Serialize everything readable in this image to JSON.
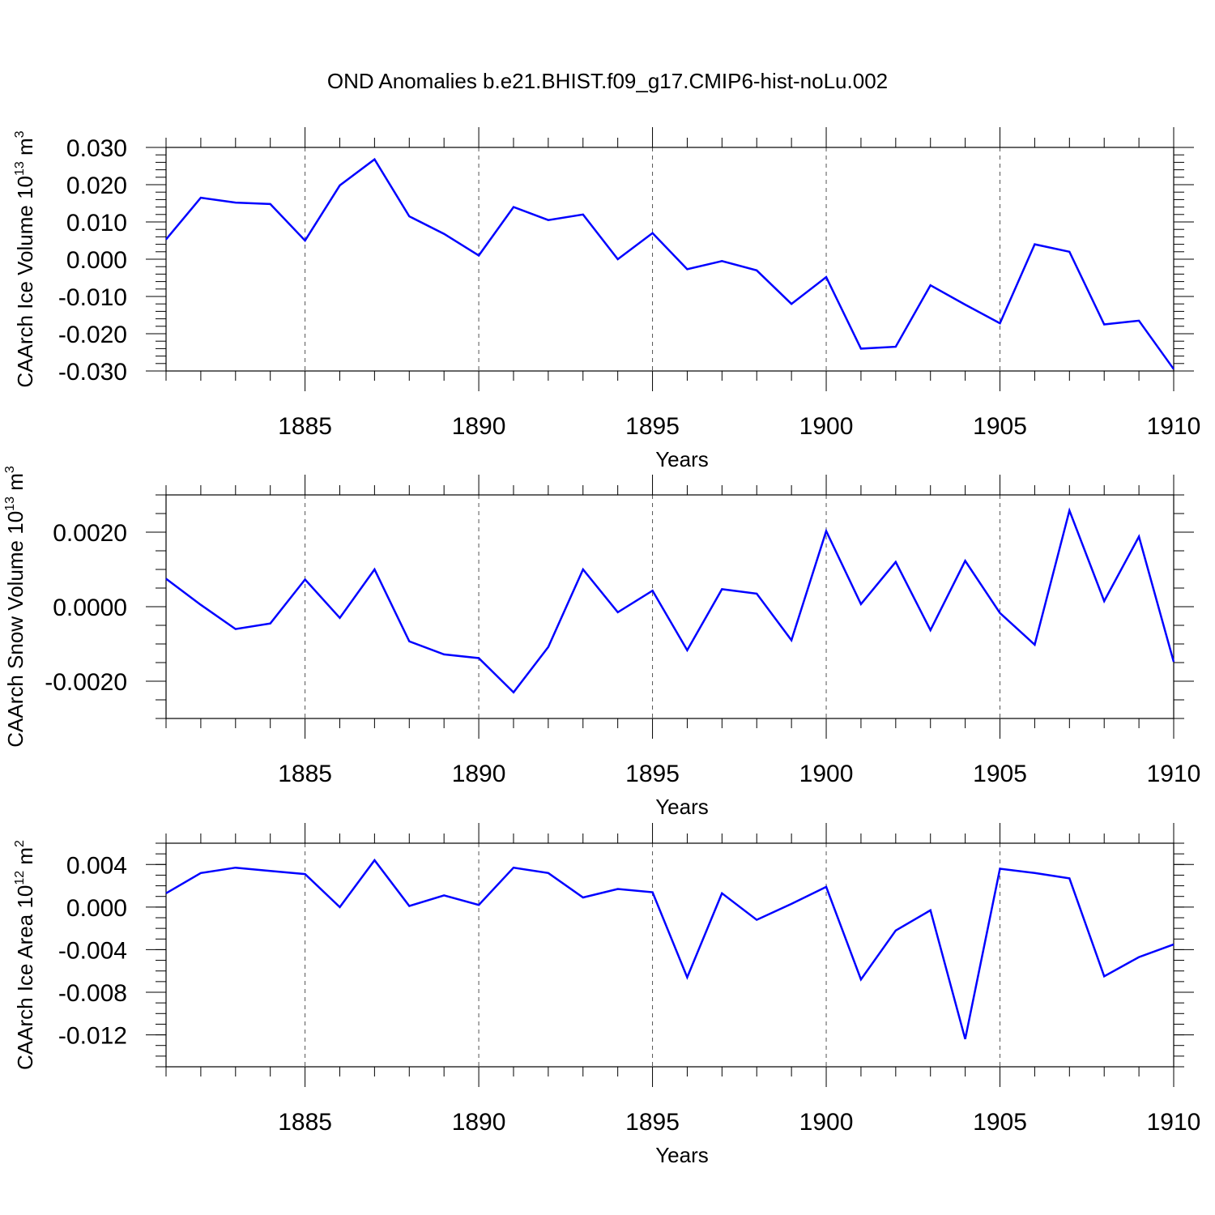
{
  "title": "OND Anomalies b.e21.BHIST.f09_g17.CMIP6-hist-noLu.002",
  "series_color": "#0000ff",
  "chart_data": [
    {
      "type": "line",
      "title": "OND Anomalies b.e21.BHIST.f09_g17.CMIP6-hist-noLu.002",
      "xlabel": "Years",
      "ylabel_text": "CAArch Ice Volume 10",
      "ylabel_exp": "13",
      "ylabel_unit": " m",
      "ylabel_unit_exp": "3",
      "xlim": [
        1881,
        1910
      ],
      "ylim": [
        -0.03,
        0.03
      ],
      "x_ticks": [
        1885,
        1890,
        1895,
        1900,
        1905,
        1910
      ],
      "y_ticks": [
        -0.03,
        -0.02,
        -0.01,
        0.0,
        0.01,
        0.02,
        0.03
      ],
      "y_tick_labels": [
        "-0.030",
        "-0.020",
        "-0.010",
        "0.000",
        "0.010",
        "0.020",
        "0.030"
      ],
      "y_minor_step": 0.002,
      "grid": "vertical dashed at major x ticks",
      "x": [
        1881,
        1882,
        1883,
        1884,
        1885,
        1886,
        1887,
        1888,
        1889,
        1890,
        1891,
        1892,
        1893,
        1894,
        1895,
        1896,
        1897,
        1898,
        1899,
        1900,
        1901,
        1902,
        1903,
        1904,
        1905,
        1906,
        1907,
        1908,
        1909,
        1910
      ],
      "values": [
        0.0053,
        0.0165,
        0.0152,
        0.0148,
        0.005,
        0.0198,
        0.0268,
        0.0115,
        0.0068,
        0.001,
        0.014,
        0.0105,
        0.012,
        0.0,
        0.007,
        -0.0027,
        -0.0005,
        -0.003,
        -0.012,
        -0.0048,
        -0.024,
        -0.0235,
        -0.007,
        -0.0122,
        -0.0172,
        0.004,
        0.002,
        -0.0175,
        -0.0165,
        -0.0295
      ]
    },
    {
      "type": "line",
      "xlabel": "Years",
      "ylabel_text": "CAArch Snow Volume 10",
      "ylabel_exp": "13",
      "ylabel_unit": " m",
      "ylabel_unit_exp": "3",
      "xlim": [
        1881,
        1910
      ],
      "ylim": [
        -0.003,
        0.003
      ],
      "x_ticks": [
        1885,
        1890,
        1895,
        1900,
        1905,
        1910
      ],
      "y_ticks": [
        -0.002,
        0.0,
        0.002
      ],
      "y_tick_labels": [
        "-0.0020",
        "0.0000",
        "0.0020"
      ],
      "y_minor_step": 0.0005,
      "grid": "vertical dashed at major x ticks",
      "x": [
        1881,
        1882,
        1883,
        1884,
        1885,
        1886,
        1887,
        1888,
        1889,
        1890,
        1891,
        1892,
        1893,
        1894,
        1895,
        1896,
        1897,
        1898,
        1899,
        1900,
        1901,
        1902,
        1903,
        1904,
        1905,
        1906,
        1907,
        1908,
        1909,
        1910
      ],
      "values": [
        0.00075,
        5e-05,
        -0.0006,
        -0.00045,
        0.00073,
        -0.0003,
        0.001,
        -0.00093,
        -0.00128,
        -0.00138,
        -0.0023,
        -0.00108,
        0.001,
        -0.00015,
        0.00043,
        -0.00117,
        0.00047,
        0.00035,
        -0.0009,
        0.00203,
        7e-05,
        0.0012,
        -0.00063,
        0.00123,
        -0.00017,
        -0.00102,
        0.00258,
        0.00015,
        0.00188,
        -0.00148
      ]
    },
    {
      "type": "line",
      "xlabel": "Years",
      "ylabel_text": "CAArch Ice Area 10",
      "ylabel_exp": "12",
      "ylabel_unit": " m",
      "ylabel_unit_exp": "2",
      "xlim": [
        1881,
        1910
      ],
      "ylim": [
        -0.015,
        0.006
      ],
      "x_ticks": [
        1885,
        1890,
        1895,
        1900,
        1905,
        1910
      ],
      "y_ticks": [
        -0.012,
        -0.008,
        -0.004,
        0.0,
        0.004
      ],
      "y_tick_labels": [
        "-0.012",
        "-0.008",
        "-0.004",
        "0.000",
        "0.004"
      ],
      "y_minor_step": 0.001,
      "grid": "vertical dashed at major x ticks",
      "x": [
        1881,
        1882,
        1883,
        1884,
        1885,
        1886,
        1887,
        1888,
        1889,
        1890,
        1891,
        1892,
        1893,
        1894,
        1895,
        1896,
        1897,
        1898,
        1899,
        1900,
        1901,
        1902,
        1903,
        1904,
        1905,
        1906,
        1907,
        1908,
        1909,
        1910
      ],
      "values": [
        0.0013,
        0.0032,
        0.0037,
        0.0034,
        0.0031,
        0.0,
        0.0044,
        0.0001,
        0.0011,
        0.0002,
        0.0037,
        0.0032,
        0.0009,
        0.0017,
        0.0014,
        -0.0066,
        0.0013,
        -0.0012,
        0.0003,
        0.0019,
        -0.0068,
        -0.0022,
        -0.0003,
        -0.0124,
        0.0036,
        0.0032,
        0.0027,
        -0.0065,
        -0.0047,
        -0.0035
      ]
    }
  ]
}
